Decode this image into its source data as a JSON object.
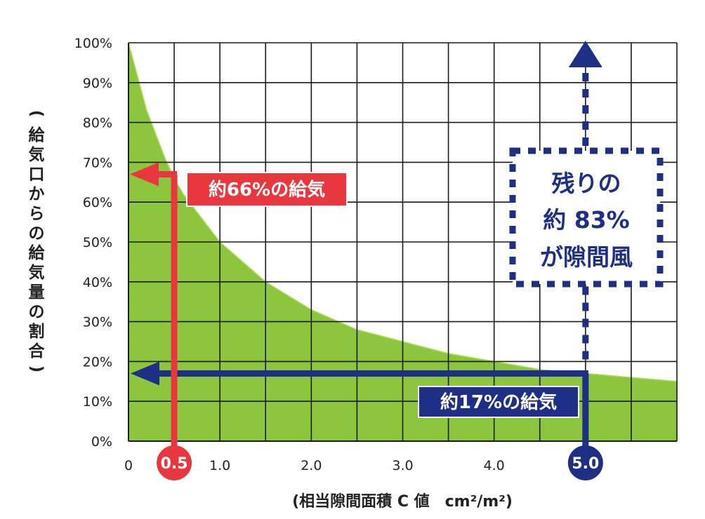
{
  "chart_data": {
    "type": "area",
    "ylabel": "(給気口からの給気量の割合)",
    "xlabel": "(相当隙間面積 C 値　cm²/m²)",
    "x_ticks": [
      "0",
      "1.0",
      "2.0",
      "3.0",
      "4.0"
    ],
    "y_ticks": [
      "0%",
      "10%",
      "20%",
      "30%",
      "40%",
      "50%",
      "60%",
      "70%",
      "80%",
      "90%",
      "100%"
    ],
    "xlim": [
      0,
      6
    ],
    "ylim": [
      0,
      100
    ],
    "grid": true,
    "curve_color": "#8cc63f",
    "x": [
      0,
      0.2,
      0.4,
      0.5,
      0.6,
      0.8,
      1.0,
      1.5,
      2.0,
      2.5,
      3.0,
      3.5,
      4.0,
      4.5,
      5.0,
      5.5,
      6.0
    ],
    "y": [
      100,
      83,
      71,
      66,
      62,
      56,
      50,
      40,
      33,
      28,
      25,
      22,
      20,
      18,
      17,
      16,
      15
    ],
    "markers": [
      {
        "x_label": "0.5",
        "x": 0.5,
        "y": 67,
        "label": "約66%の給気",
        "color": "#e8383d"
      },
      {
        "x_label": "5.0",
        "x": 5.0,
        "y": 17,
        "label": "約17%の給気",
        "color": "#1e2f85"
      }
    ],
    "remaining": {
      "lines": [
        "残りの",
        "約 83%",
        "が隙間風"
      ],
      "color": "#1e2f85"
    }
  }
}
